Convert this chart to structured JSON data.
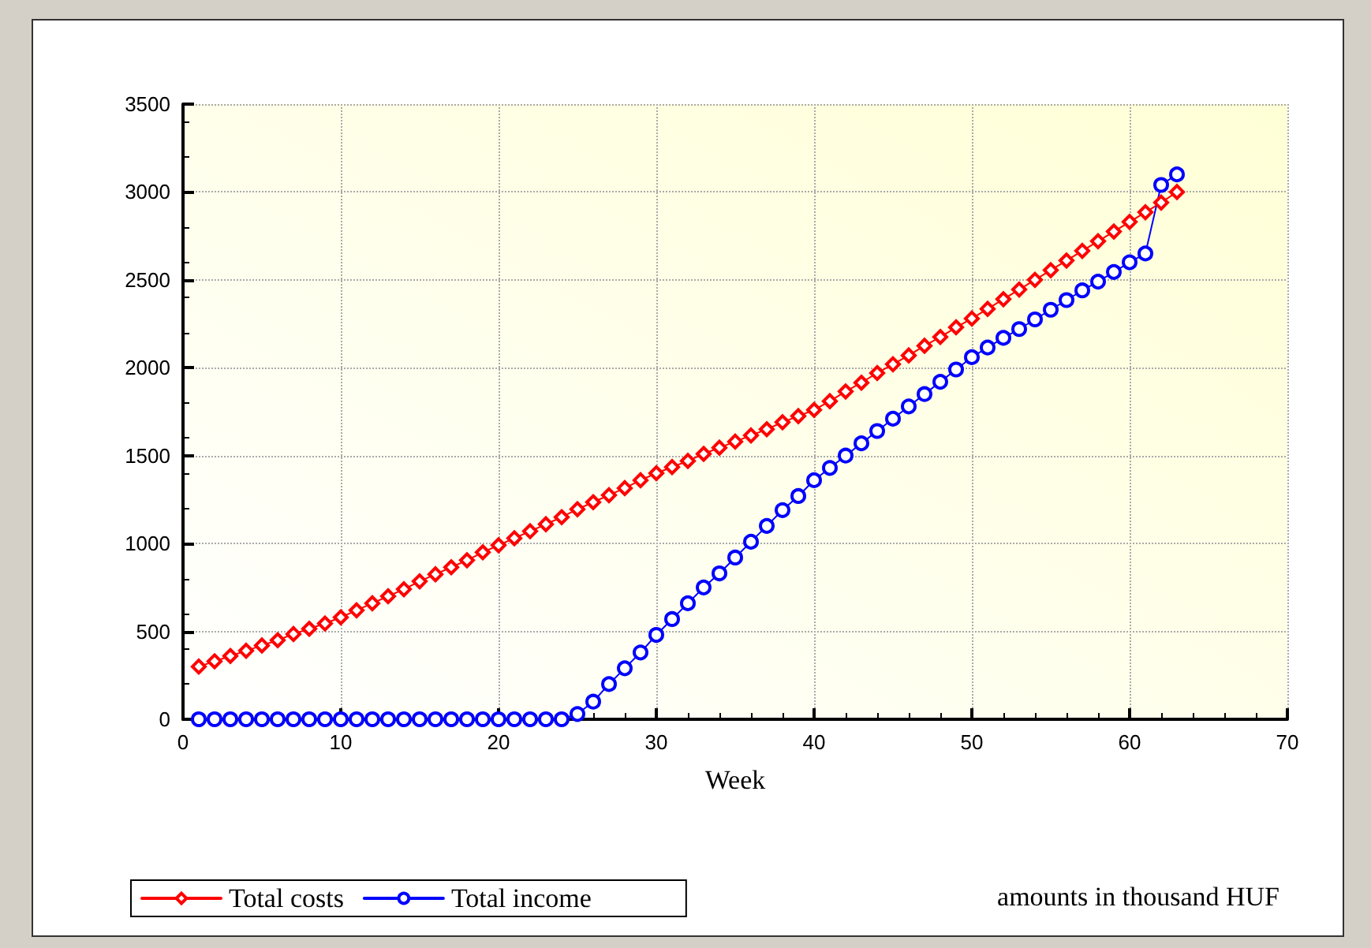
{
  "chart_data": {
    "type": "line",
    "xlabel": "Week",
    "x": [
      1,
      2,
      3,
      4,
      5,
      6,
      7,
      8,
      9,
      10,
      11,
      12,
      13,
      14,
      15,
      16,
      17,
      18,
      19,
      20,
      21,
      22,
      23,
      24,
      25,
      26,
      27,
      28,
      29,
      30,
      31,
      32,
      33,
      34,
      35,
      36,
      37,
      38,
      39,
      40,
      41,
      42,
      43,
      44,
      45,
      46,
      47,
      48,
      49,
      50,
      51,
      52,
      53,
      54,
      55,
      56,
      57,
      58,
      59,
      60,
      61,
      62,
      63
    ],
    "series": [
      {
        "name": "Total costs",
        "color": "#ff0000",
        "marker": "diamond",
        "values": [
          300,
          330,
          360,
          390,
          420,
          450,
          485,
          515,
          545,
          580,
          620,
          660,
          700,
          740,
          785,
          825,
          865,
          905,
          950,
          990,
          1030,
          1070,
          1110,
          1150,
          1195,
          1235,
          1275,
          1315,
          1360,
          1400,
          1435,
          1470,
          1510,
          1545,
          1580,
          1615,
          1650,
          1690,
          1725,
          1760,
          1810,
          1865,
          1915,
          1970,
          2020,
          2070,
          2125,
          2175,
          2230,
          2280,
          2335,
          2390,
          2445,
          2500,
          2555,
          2610,
          2665,
          2720,
          2775,
          2830,
          2885,
          2940,
          3000
        ]
      },
      {
        "name": "Total income",
        "color": "#0000ff",
        "marker": "circle",
        "values": [
          0,
          0,
          0,
          0,
          0,
          0,
          0,
          0,
          0,
          0,
          0,
          0,
          0,
          0,
          0,
          0,
          0,
          0,
          0,
          0,
          0,
          0,
          0,
          0,
          30,
          100,
          200,
          290,
          380,
          480,
          570,
          660,
          750,
          830,
          920,
          1010,
          1100,
          1190,
          1270,
          1360,
          1430,
          1500,
          1570,
          1640,
          1710,
          1780,
          1850,
          1920,
          1990,
          2060,
          2115,
          2170,
          2220,
          2275,
          2330,
          2385,
          2440,
          2490,
          2545,
          2600,
          2650,
          3040,
          3100
        ]
      }
    ],
    "xlim": [
      0,
      70
    ],
    "xticks": [
      0,
      10,
      20,
      30,
      40,
      50,
      60,
      70
    ],
    "ylim": [
      0,
      3500
    ],
    "yticks": [
      0,
      500,
      1000,
      1500,
      2000,
      2500,
      3000,
      3500
    ],
    "grid": true,
    "legend": "bottom left",
    "line_style": "solid",
    "annotations": [
      "amounts in thousand HUF"
    ]
  }
}
